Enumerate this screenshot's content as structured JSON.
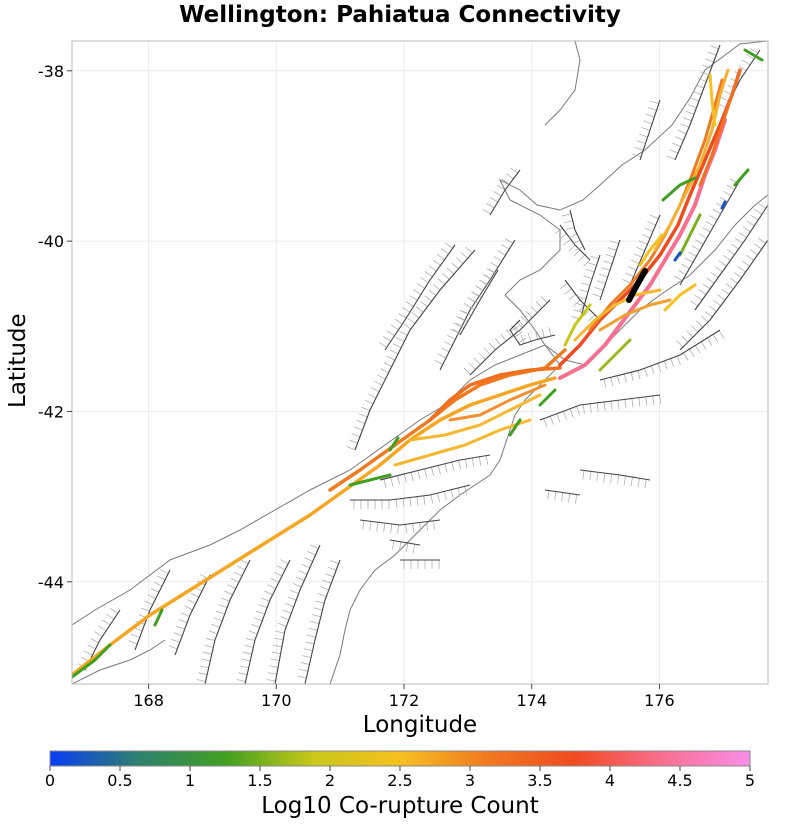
{
  "chart_data": {
    "type": "map",
    "title": "Wellington: Pahiatua Connectivity",
    "xlabel": "Longitude",
    "ylabel": "Latitude",
    "xlim": [
      166.8,
      177.7
    ],
    "ylim": [
      -45.2,
      -37.65
    ],
    "xticks": [
      168,
      170,
      172,
      174,
      176
    ],
    "xtick_labels": [
      "168",
      "170",
      "172",
      "174",
      "176"
    ],
    "yticks": [
      -38,
      -40,
      -42,
      -44
    ],
    "ytick_labels": [
      "-38",
      "-40",
      "-42",
      "-44"
    ],
    "grid": true,
    "colorbar": {
      "label": "Log10 Co-rupture Count",
      "range": [
        0,
        5
      ],
      "ticks": [
        0,
        0.5,
        1,
        1.5,
        2,
        2.5,
        3,
        3.5,
        4,
        4.5,
        5
      ],
      "tick_labels": [
        "0",
        "0.5",
        "1",
        "1.5",
        "2",
        "2.5",
        "3",
        "3.5",
        "4",
        "4.5",
        "5"
      ],
      "stops": [
        "#0a3cf5",
        "#2f7f6f",
        "#3fa020",
        "#c8c818",
        "#f5c020",
        "#f07a20",
        "#f04a20",
        "#f87090",
        "#f98de8"
      ]
    },
    "highlight_fault_color": "#000000",
    "background_fault_color": "#555555"
  }
}
